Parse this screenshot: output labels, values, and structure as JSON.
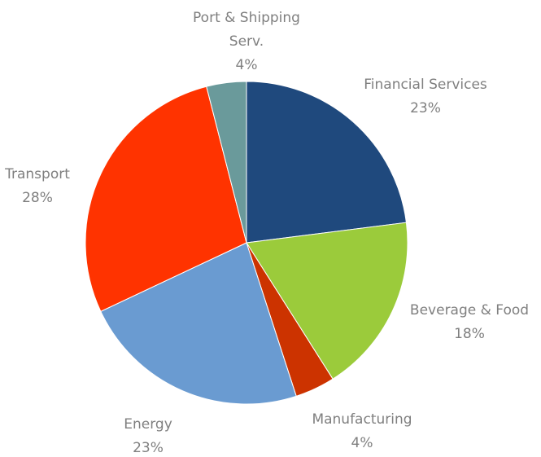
{
  "chart_data": {
    "type": "pie",
    "categories": [
      "Financial Services",
      "Beverage & Food",
      "Manufacturing",
      "Energy",
      "Transport",
      "Port & Shipping Serv."
    ],
    "values": [
      23,
      18,
      4,
      23,
      28,
      4
    ],
    "value_labels": [
      "23%",
      "18%",
      "4%",
      "23%",
      "28%",
      "4%"
    ],
    "colors": [
      "#1f497d",
      "#9bcb3b",
      "#cc3300",
      "#6a9bd1",
      "#ff3300",
      "#6a9a9b"
    ]
  }
}
